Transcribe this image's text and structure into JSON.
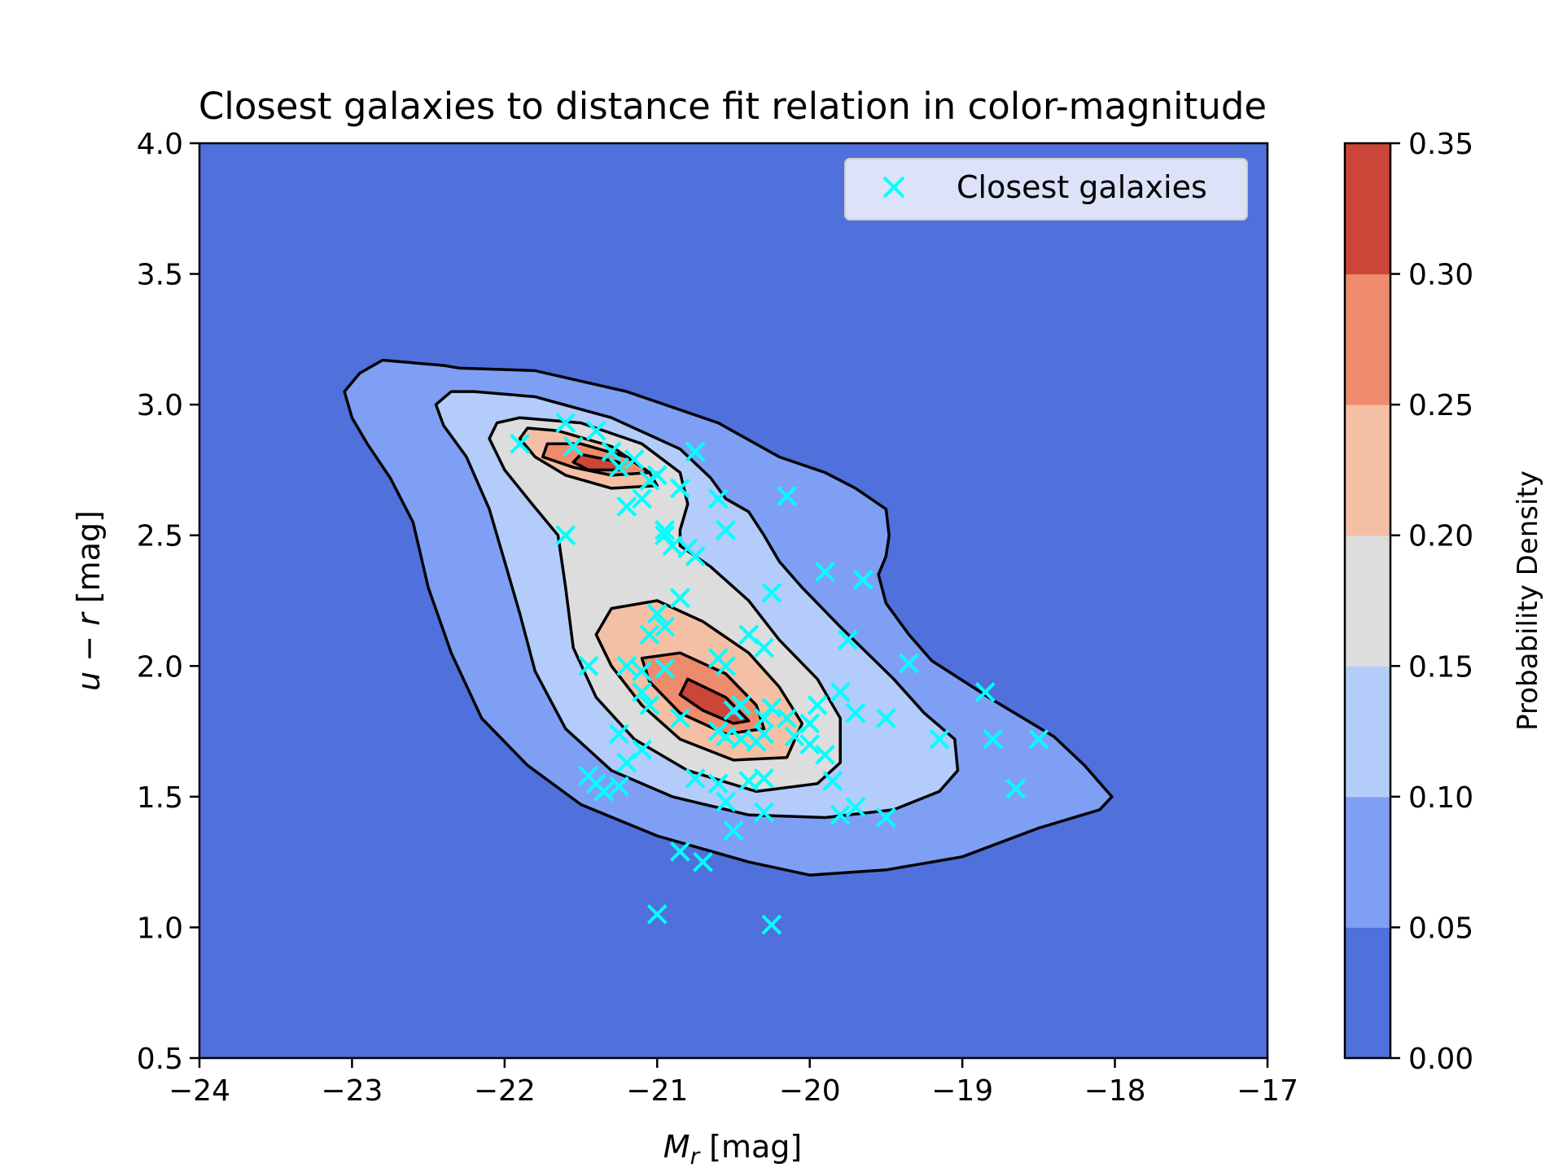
{
  "chart_data": {
    "type": "contour",
    "title": "Closest galaxies to distance fit relation in color-magnitude",
    "xlabel": "Mr [mag]",
    "ylabel": "u − r [mag]",
    "xlim": [
      -24,
      -17
    ],
    "ylim": [
      0.5,
      4.0
    ],
    "x_ticks": [
      -24,
      -23,
      -22,
      -21,
      -20,
      -19,
      -18,
      -17
    ],
    "x_tick_labels": [
      "−24",
      "−23",
      "−22",
      "−21",
      "−20",
      "−19",
      "−18",
      "−17"
    ],
    "y_ticks": [
      0.5,
      1.0,
      1.5,
      2.0,
      2.5,
      3.0,
      3.5,
      4.0
    ],
    "y_tick_labels": [
      "0.5",
      "1.0",
      "1.5",
      "2.0",
      "2.5",
      "3.0",
      "3.5",
      "4.0"
    ],
    "legend": {
      "label": "Closest galaxies",
      "position": "top-right"
    },
    "colorbar": {
      "label": "Probability Density",
      "levels": [
        0.0,
        0.05,
        0.1,
        0.15,
        0.2,
        0.25,
        0.3,
        0.35
      ],
      "tick_labels": [
        "0.00",
        "0.05",
        "0.10",
        "0.15",
        "0.20",
        "0.25",
        "0.30",
        "0.35"
      ],
      "colors": [
        "#5070db",
        "#7f9ff4",
        "#b4ccfa",
        "#dddddd",
        "#f4c0a5",
        "#ef8b6d",
        "#cc4539"
      ]
    },
    "contour_levels": [
      {
        "level": 0.05,
        "regions": [
          [
            [
              -22.3,
              3.14
            ],
            [
              -21.8,
              3.13
            ],
            [
              -21.2,
              3.05
            ],
            [
              -20.6,
              2.93
            ],
            [
              -20.2,
              2.8
            ],
            [
              -19.9,
              2.74
            ],
            [
              -19.7,
              2.68
            ],
            [
              -19.5,
              2.6
            ],
            [
              -19.48,
              2.5
            ],
            [
              -19.5,
              2.42
            ],
            [
              -19.55,
              2.35
            ],
            [
              -19.5,
              2.24
            ],
            [
              -19.35,
              2.12
            ],
            [
              -19.2,
              2.02
            ],
            [
              -18.8,
              1.87
            ],
            [
              -18.4,
              1.73
            ],
            [
              -18.2,
              1.62
            ],
            [
              -18.02,
              1.5
            ],
            [
              -18.1,
              1.45
            ],
            [
              -18.5,
              1.38
            ],
            [
              -19.0,
              1.27
            ],
            [
              -19.5,
              1.22
            ],
            [
              -20.0,
              1.2
            ],
            [
              -20.4,
              1.25
            ],
            [
              -21.0,
              1.35
            ],
            [
              -21.5,
              1.47
            ],
            [
              -21.85,
              1.62
            ],
            [
              -22.15,
              1.8
            ],
            [
              -22.35,
              2.05
            ],
            [
              -22.5,
              2.3
            ],
            [
              -22.6,
              2.55
            ],
            [
              -22.75,
              2.72
            ],
            [
              -22.9,
              2.85
            ],
            [
              -23.0,
              2.95
            ],
            [
              -23.05,
              3.05
            ],
            [
              -22.95,
              3.12
            ],
            [
              -22.8,
              3.17
            ],
            [
              -22.6,
              3.16
            ],
            [
              -22.4,
              3.15
            ]
          ]
        ]
      },
      {
        "level": 0.1,
        "regions": [
          [
            [
              -22.2,
              3.05
            ],
            [
              -21.8,
              3.03
            ],
            [
              -21.3,
              2.95
            ],
            [
              -20.85,
              2.83
            ],
            [
              -20.65,
              2.72
            ],
            [
              -20.55,
              2.64
            ],
            [
              -20.4,
              2.59
            ],
            [
              -20.3,
              2.5
            ],
            [
              -20.2,
              2.4
            ],
            [
              -20.05,
              2.3
            ],
            [
              -19.8,
              2.15
            ],
            [
              -19.45,
              1.95
            ],
            [
              -19.25,
              1.82
            ],
            [
              -19.05,
              1.72
            ],
            [
              -19.03,
              1.6
            ],
            [
              -19.15,
              1.52
            ],
            [
              -19.45,
              1.45
            ],
            [
              -19.9,
              1.42
            ],
            [
              -20.4,
              1.43
            ],
            [
              -20.9,
              1.5
            ],
            [
              -21.3,
              1.6
            ],
            [
              -21.6,
              1.76
            ],
            [
              -21.8,
              1.98
            ],
            [
              -21.9,
              2.2
            ],
            [
              -22.0,
              2.4
            ],
            [
              -22.1,
              2.6
            ],
            [
              -22.25,
              2.8
            ],
            [
              -22.4,
              2.92
            ],
            [
              -22.45,
              3.0
            ],
            [
              -22.35,
              3.05
            ]
          ]
        ]
      },
      {
        "level": 0.15,
        "regions": [
          [
            [
              -21.9,
              2.95
            ],
            [
              -21.5,
              2.93
            ],
            [
              -21.1,
              2.85
            ],
            [
              -20.85,
              2.74
            ],
            [
              -20.8,
              2.62
            ],
            [
              -20.85,
              2.52
            ],
            [
              -20.85,
              2.46
            ],
            [
              -20.65,
              2.38
            ],
            [
              -20.4,
              2.25
            ],
            [
              -20.2,
              2.1
            ],
            [
              -19.95,
              1.95
            ],
            [
              -19.8,
              1.8
            ],
            [
              -19.8,
              1.63
            ],
            [
              -19.95,
              1.55
            ],
            [
              -20.35,
              1.52
            ],
            [
              -20.8,
              1.6
            ],
            [
              -21.15,
              1.72
            ],
            [
              -21.4,
              1.88
            ],
            [
              -21.55,
              2.07
            ],
            [
              -21.6,
              2.3
            ],
            [
              -21.65,
              2.5
            ],
            [
              -21.82,
              2.62
            ],
            [
              -22.0,
              2.75
            ],
            [
              -22.1,
              2.87
            ],
            [
              -22.05,
              2.93
            ]
          ]
        ]
      },
      {
        "level": 0.2,
        "regions": [
          [
            [
              -21.65,
              2.9
            ],
            [
              -21.3,
              2.84
            ],
            [
              -21.05,
              2.74
            ],
            [
              -21.0,
              2.69
            ],
            [
              -21.3,
              2.68
            ],
            [
              -21.6,
              2.73
            ],
            [
              -21.8,
              2.8
            ],
            [
              -21.9,
              2.87
            ],
            [
              -21.85,
              2.91
            ]
          ],
          [
            [
              -21.0,
              2.25
            ],
            [
              -20.7,
              2.17
            ],
            [
              -20.4,
              2.05
            ],
            [
              -20.2,
              1.92
            ],
            [
              -20.05,
              1.78
            ],
            [
              -20.15,
              1.65
            ],
            [
              -20.5,
              1.64
            ],
            [
              -20.85,
              1.72
            ],
            [
              -21.1,
              1.85
            ],
            [
              -21.3,
              2.0
            ],
            [
              -21.4,
              2.12
            ],
            [
              -21.3,
              2.22
            ]
          ]
        ]
      },
      {
        "level": 0.25,
        "regions": [
          [
            [
              -21.5,
              2.85
            ],
            [
              -21.2,
              2.8
            ],
            [
              -21.05,
              2.74
            ],
            [
              -21.3,
              2.73
            ],
            [
              -21.55,
              2.76
            ],
            [
              -21.75,
              2.8
            ],
            [
              -21.72,
              2.85
            ]
          ],
          [
            [
              -20.85,
              2.05
            ],
            [
              -20.55,
              1.97
            ],
            [
              -20.35,
              1.85
            ],
            [
              -20.3,
              1.76
            ],
            [
              -20.55,
              1.74
            ],
            [
              -20.85,
              1.82
            ],
            [
              -21.05,
              1.94
            ],
            [
              -21.1,
              2.03
            ]
          ]
        ]
      },
      {
        "level": 0.3,
        "regions": [
          [
            [
              -21.5,
              2.81
            ],
            [
              -21.25,
              2.78
            ],
            [
              -21.25,
              2.75
            ],
            [
              -21.45,
              2.75
            ],
            [
              -21.55,
              2.78
            ]
          ],
          [
            [
              -20.8,
              1.95
            ],
            [
              -20.55,
              1.88
            ],
            [
              -20.4,
              1.79
            ],
            [
              -20.5,
              1.78
            ],
            [
              -20.7,
              1.83
            ],
            [
              -20.85,
              1.89
            ]
          ]
        ]
      }
    ],
    "series": [
      {
        "name": "Closest galaxies",
        "type": "scatter",
        "marker": "x",
        "color": "#00ffff",
        "points": [
          [
            -21.55,
            2.84
          ],
          [
            -21.3,
            2.82
          ],
          [
            -21.15,
            2.79
          ],
          [
            -21.25,
            2.76
          ],
          [
            -21.4,
            2.9
          ],
          [
            -21.6,
            2.93
          ],
          [
            -21.9,
            2.85
          ],
          [
            -21.05,
            2.71
          ],
          [
            -21.0,
            2.73
          ],
          [
            -20.85,
            2.68
          ],
          [
            -21.1,
            2.64
          ],
          [
            -21.2,
            2.61
          ],
          [
            -20.75,
            2.82
          ],
          [
            -20.6,
            2.64
          ],
          [
            -20.55,
            2.52
          ],
          [
            -20.15,
            2.65
          ],
          [
            -21.6,
            2.5
          ],
          [
            -20.95,
            2.5
          ],
          [
            -20.9,
            2.46
          ],
          [
            -20.8,
            2.45
          ],
          [
            -20.75,
            2.42
          ],
          [
            -20.95,
            2.52
          ],
          [
            -19.9,
            2.36
          ],
          [
            -19.65,
            2.33
          ],
          [
            -20.25,
            2.28
          ],
          [
            -20.85,
            2.26
          ],
          [
            -20.95,
            2.15
          ],
          [
            -21.05,
            2.12
          ],
          [
            -21.0,
            2.2
          ],
          [
            -20.4,
            2.12
          ],
          [
            -20.3,
            2.07
          ],
          [
            -19.75,
            2.1
          ],
          [
            -19.35,
            2.01
          ],
          [
            -21.45,
            2.0
          ],
          [
            -21.2,
            2.0
          ],
          [
            -21.1,
            1.98
          ],
          [
            -20.95,
            1.99
          ],
          [
            -20.55,
            2.0
          ],
          [
            -20.6,
            2.03
          ],
          [
            -20.45,
            1.85
          ],
          [
            -20.5,
            1.83
          ],
          [
            -20.3,
            1.8
          ],
          [
            -20.25,
            1.84
          ],
          [
            -20.15,
            1.8
          ],
          [
            -20.0,
            1.78
          ],
          [
            -19.95,
            1.85
          ],
          [
            -19.8,
            1.9
          ],
          [
            -19.7,
            1.82
          ],
          [
            -19.5,
            1.8
          ],
          [
            -20.6,
            1.75
          ],
          [
            -20.55,
            1.73
          ],
          [
            -20.45,
            1.72
          ],
          [
            -20.35,
            1.71
          ],
          [
            -20.3,
            1.74
          ],
          [
            -20.1,
            1.73
          ],
          [
            -20.0,
            1.7
          ],
          [
            -19.9,
            1.66
          ],
          [
            -21.1,
            1.9
          ],
          [
            -21.05,
            1.85
          ],
          [
            -20.85,
            1.8
          ],
          [
            -21.25,
            1.74
          ],
          [
            -21.1,
            1.68
          ],
          [
            -21.2,
            1.63
          ],
          [
            -19.15,
            1.72
          ],
          [
            -18.8,
            1.72
          ],
          [
            -18.5,
            1.72
          ],
          [
            -18.85,
            1.9
          ],
          [
            -21.45,
            1.58
          ],
          [
            -21.4,
            1.55
          ],
          [
            -21.35,
            1.52
          ],
          [
            -21.25,
            1.54
          ],
          [
            -20.75,
            1.57
          ],
          [
            -20.6,
            1.55
          ],
          [
            -20.4,
            1.56
          ],
          [
            -20.3,
            1.57
          ],
          [
            -20.55,
            1.48
          ],
          [
            -20.3,
            1.44
          ],
          [
            -19.85,
            1.56
          ],
          [
            -19.8,
            1.43
          ],
          [
            -19.7,
            1.46
          ],
          [
            -19.5,
            1.42
          ],
          [
            -18.65,
            1.53
          ],
          [
            -20.85,
            1.29
          ],
          [
            -20.7,
            1.25
          ],
          [
            -20.5,
            1.37
          ],
          [
            -21.0,
            1.05
          ],
          [
            -20.25,
            1.01
          ]
        ]
      }
    ]
  }
}
